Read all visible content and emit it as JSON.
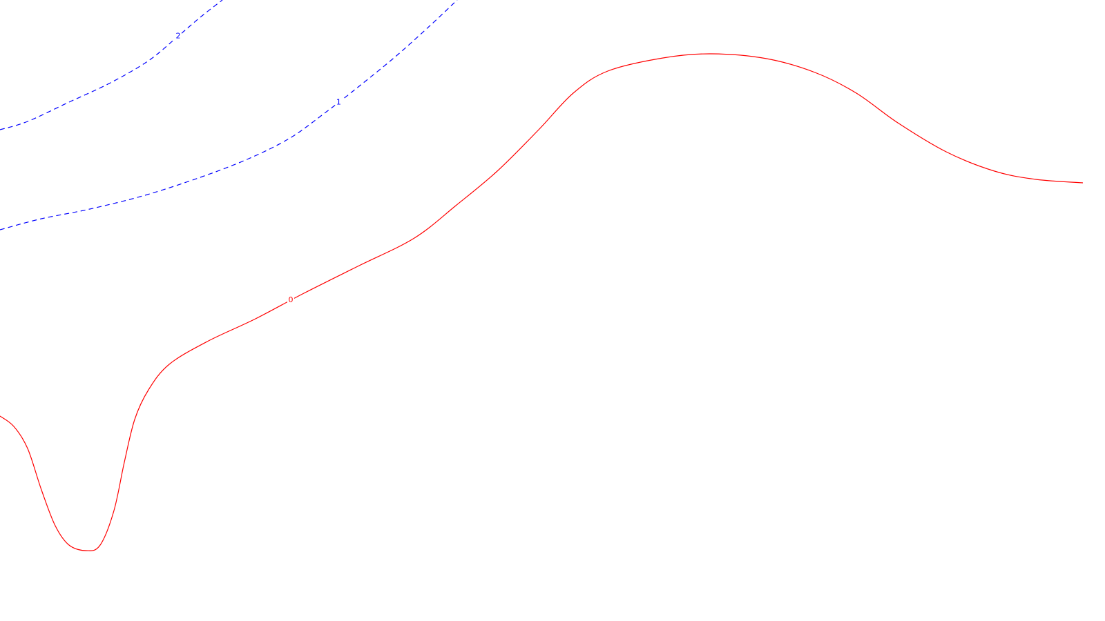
{
  "chart_data": {
    "type": "contour",
    "title": "",
    "xlabel": "",
    "ylabel": "",
    "grid": false,
    "legend": "none",
    "colors": {
      "positive": "#0000ff",
      "zero": "#ff0000",
      "background": "#ffffff"
    },
    "series": [
      {
        "level": "2",
        "style": "dashed",
        "color": "#0000ff",
        "points": [
          [
            0,
            188
          ],
          [
            40,
            176
          ],
          [
            100,
            148
          ],
          [
            160,
            120
          ],
          [
            215,
            88
          ],
          [
            255,
            55
          ],
          [
            290,
            25
          ],
          [
            322,
            0
          ]
        ]
      },
      {
        "level": "1",
        "style": "dashed",
        "color": "#0000ff",
        "points": [
          [
            0,
            333
          ],
          [
            60,
            317
          ],
          [
            130,
            303
          ],
          [
            210,
            283
          ],
          [
            290,
            257
          ],
          [
            360,
            230
          ],
          [
            420,
            200
          ],
          [
            470,
            164
          ],
          [
            520,
            125
          ],
          [
            575,
            80
          ],
          [
            625,
            35
          ],
          [
            662,
            0
          ]
        ]
      },
      {
        "level": "0",
        "style": "solid",
        "color": "#ff0000",
        "points": [
          [
            0,
            603
          ],
          [
            20,
            618
          ],
          [
            40,
            650
          ],
          [
            60,
            710
          ],
          [
            80,
            762
          ],
          [
            100,
            790
          ],
          [
            125,
            798
          ],
          [
            145,
            790
          ],
          [
            165,
            740
          ],
          [
            180,
            670
          ],
          [
            195,
            608
          ],
          [
            215,
            565
          ],
          [
            245,
            528
          ],
          [
            300,
            495
          ],
          [
            370,
            462
          ],
          [
            440,
            425
          ],
          [
            520,
            385
          ],
          [
            600,
            345
          ],
          [
            660,
            298
          ],
          [
            720,
            248
          ],
          [
            780,
            188
          ],
          [
            830,
            135
          ],
          [
            880,
            103
          ],
          [
            960,
            84
          ],
          [
            1030,
            78
          ],
          [
            1110,
            85
          ],
          [
            1180,
            105
          ],
          [
            1240,
            135
          ],
          [
            1300,
            178
          ],
          [
            1370,
            220
          ],
          [
            1440,
            248
          ],
          [
            1500,
            260
          ],
          [
            1568,
            265
          ]
        ]
      }
    ]
  }
}
